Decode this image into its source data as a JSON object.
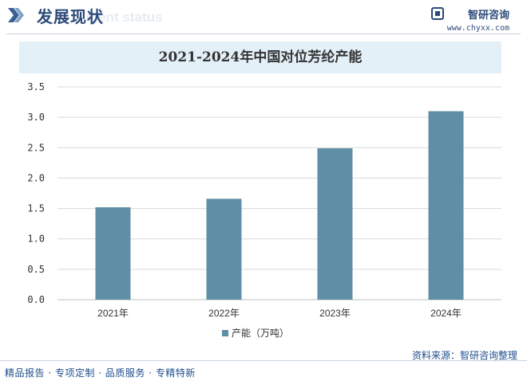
{
  "header": {
    "title": "发展现状",
    "watermark": "ment status",
    "brand_name": "智研咨询",
    "brand_url": "www.chyxx.com"
  },
  "footer": {
    "source": "资料来源：智研咨询整理",
    "slogan": "精品报告 · 专项定制 · 品质服务 · 专精特新"
  },
  "chart_data": {
    "type": "bar",
    "title": "2021-2024年中国对位芳纶产能",
    "categories": [
      "2021年",
      "2022年",
      "2023年",
      "2024年"
    ],
    "series": [
      {
        "name": "产能（万吨）",
        "values": [
          1.52,
          1.66,
          2.49,
          3.1
        ],
        "color": "#5f8fa6"
      }
    ],
    "yticks": [
      "0.0",
      "0.5",
      "1.0",
      "1.5",
      "2.0",
      "2.5",
      "3.0",
      "3.5"
    ],
    "ylim": [
      0,
      3.5
    ],
    "grid": true,
    "legend_position": "bottom"
  }
}
